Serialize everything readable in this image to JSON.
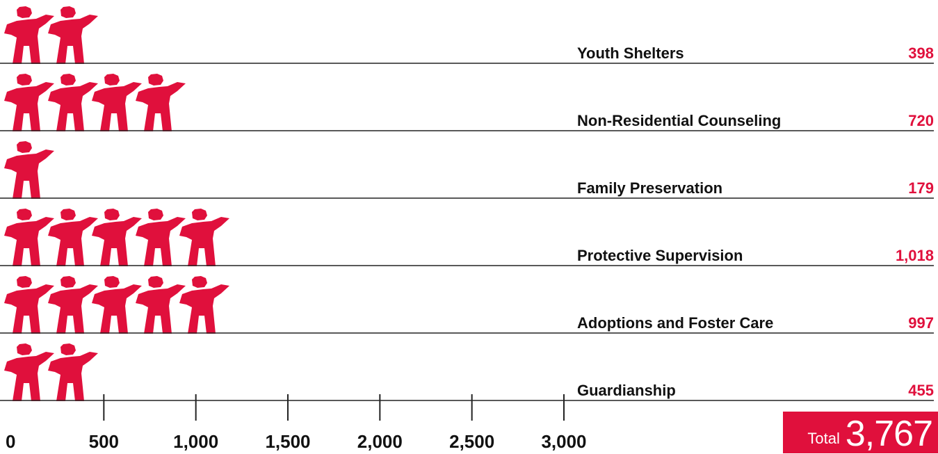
{
  "chart_data": {
    "type": "bar",
    "categories": [
      "Youth Shelters",
      "Non-Residential Counseling",
      "Family Preservation",
      "Protective Supervision",
      "Adoptions and Foster Care",
      "Guardianship"
    ],
    "values": [
      398,
      720,
      179,
      1018,
      997,
      455
    ],
    "value_labels": [
      "398",
      "720",
      "179",
      "1,018",
      "997",
      "455"
    ],
    "xlim": [
      0,
      3000
    ],
    "x_ticks": [
      0,
      500,
      1000,
      1500,
      2000,
      2500,
      3000
    ],
    "x_tick_labels": [
      "0",
      "500",
      "1,000",
      "1,500",
      "2,000",
      "2,500",
      "3,000"
    ],
    "units_per_icon": 200,
    "grid": false,
    "legend": "none"
  },
  "total": {
    "label": "Total",
    "value": "3,767"
  },
  "colors": {
    "accent": "#e0103c",
    "text": "#111111",
    "rule": "#222222"
  },
  "icon": "child-figure-icon"
}
